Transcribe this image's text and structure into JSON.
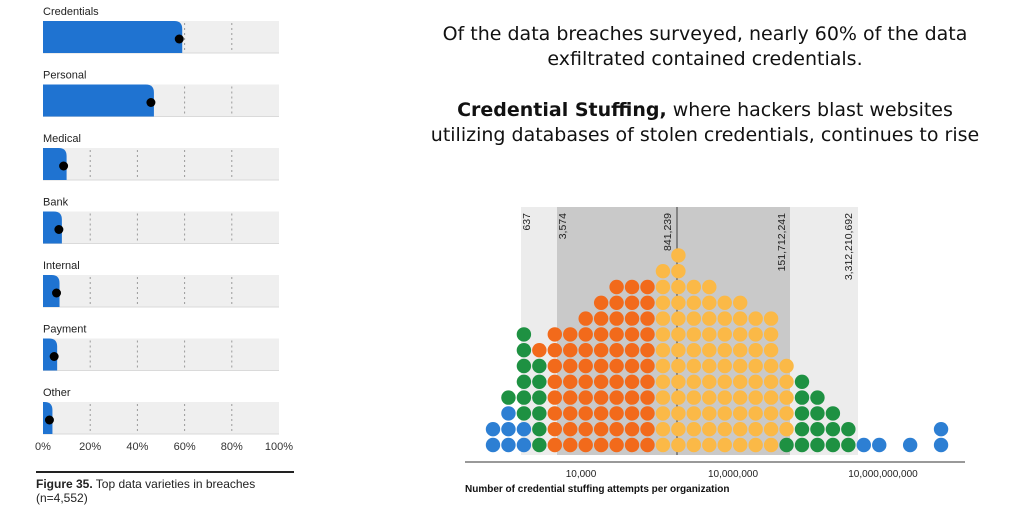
{
  "headline": "Of the data breaches surveyed, nearly 60% of the data exfiltrated contained credentials.",
  "subhead": {
    "bold": "Credential Stuffing,",
    "rest": " where hackers blast websites utilizing databases of stolen credentials, continues to rise"
  },
  "figure_caption": {
    "label": "Figure 35.",
    "text": " Top data varieties in breaches (n=4,552)"
  },
  "colors": {
    "bar": "#1f73d1",
    "track": "#efefef",
    "dot": "#000000",
    "blue": "#2d7fd3",
    "green": "#1e9142",
    "orange": "#f26a1b",
    "yellow": "#fbb947",
    "band_light": "#ececec",
    "band_dark": "#c9c9c9"
  },
  "chart_data": [
    {
      "type": "bar",
      "orientation": "horizontal",
      "categories": [
        "Credentials",
        "Personal",
        "Medical",
        "Bank",
        "Internal",
        "Payment",
        "Other"
      ],
      "values": [
        59,
        47,
        10,
        8,
        7,
        6,
        4
      ],
      "xlim": [
        0,
        100
      ],
      "xticks": [
        "0%",
        "20%",
        "40%",
        "60%",
        "80%",
        "100%"
      ],
      "grid": "dotted vertical at 20% steps"
    },
    {
      "type": "scatter",
      "subtype": "dot-histogram",
      "xlabel": "Number of credential stuffing attempts per organization",
      "xscale": "log",
      "xticks": [
        "10,000",
        "10,000,000",
        "10,000,000,000"
      ],
      "markers": [
        "637",
        "3,574",
        "841,239",
        "151,712,241",
        "3,312,210,692"
      ],
      "columns": [
        {
          "blue": 2
        },
        {
          "blue": 3,
          "green": 1
        },
        {
          "blue": 2,
          "green": 6
        },
        {
          "green": 6,
          "orange": 1
        },
        {
          "orange": 8
        },
        {
          "orange": 8
        },
        {
          "orange": 9
        },
        {
          "orange": 10
        },
        {
          "orange": 11
        },
        {
          "orange": 11
        },
        {
          "orange": 11
        },
        {
          "yellow": 12
        },
        {
          "yellow": 13
        },
        {
          "yellow": 11
        },
        {
          "yellow": 11
        },
        {
          "yellow": 10
        },
        {
          "yellow": 10
        },
        {
          "yellow": 9
        },
        {
          "yellow": 9
        },
        {
          "yellow": 5,
          "green": 1
        },
        {
          "green": 5
        },
        {
          "green": 4
        },
        {
          "green": 3
        },
        {
          "green": 2
        },
        {
          "blue": 1
        },
        {
          "blue": 1
        },
        {},
        {
          "blue": 1
        },
        {},
        {
          "blue": 2
        }
      ]
    }
  ]
}
